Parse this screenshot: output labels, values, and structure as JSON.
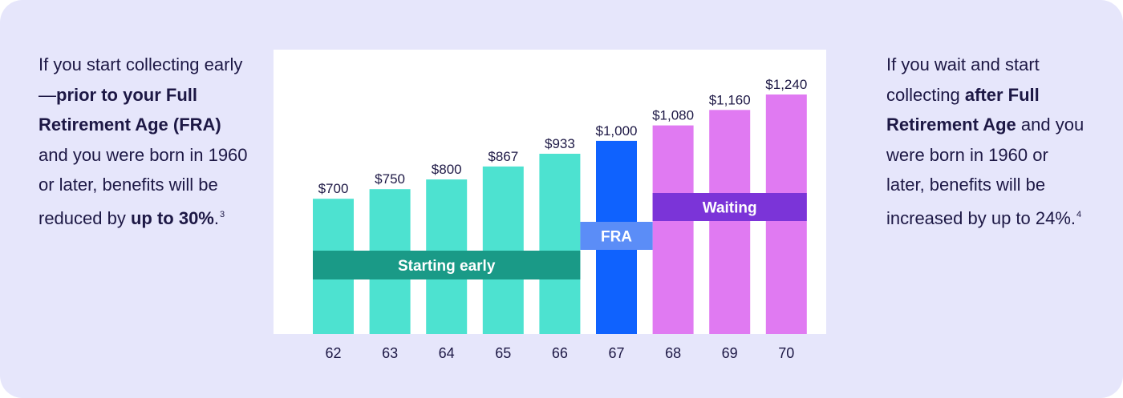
{
  "left_note": {
    "t1": "If you start collecting early—",
    "b1": "prior to your Full Retirement Age (FRA)",
    "t2": " and you were born in 1960 or later, benefits will be reduced by ",
    "b2": "up to 30%",
    "t3": ".",
    "sup": "3"
  },
  "right_note": {
    "t1": "If you wait and start collecting ",
    "b1": "after Full Retirement Age",
    "t2": " and you were born in 1960 or later, benefits will be increased by up to 24%.",
    "sup": "4"
  },
  "colors": {
    "background": "#e6e6fb",
    "early_bar": "#4de2d0",
    "early_band": "#1a9a87",
    "fra_bar": "#0f62fe",
    "fra_band": "#5b8df7",
    "waiting_bar": "#e07af2",
    "waiting_band": "#7b34d8"
  },
  "chart_data": {
    "type": "bar",
    "categories": [
      "62",
      "63",
      "64",
      "65",
      "66",
      "67",
      "68",
      "69",
      "70"
    ],
    "values": [
      700,
      750,
      800,
      867,
      933,
      1000,
      1080,
      1160,
      1240
    ],
    "value_labels": [
      "$700",
      "$750",
      "$800",
      "$867",
      "$933",
      "$1,000",
      "$1,080",
      "$1,160",
      "$1,240"
    ],
    "groups": [
      "early",
      "early",
      "early",
      "early",
      "early",
      "fra",
      "waiting",
      "waiting",
      "waiting"
    ],
    "bands": [
      {
        "label": "Starting early",
        "group": "early"
      },
      {
        "label": "FRA",
        "group": "fra"
      },
      {
        "label": "Waiting",
        "group": "waiting"
      }
    ],
    "title": "",
    "xlabel": "",
    "ylabel": "",
    "grid": false
  }
}
